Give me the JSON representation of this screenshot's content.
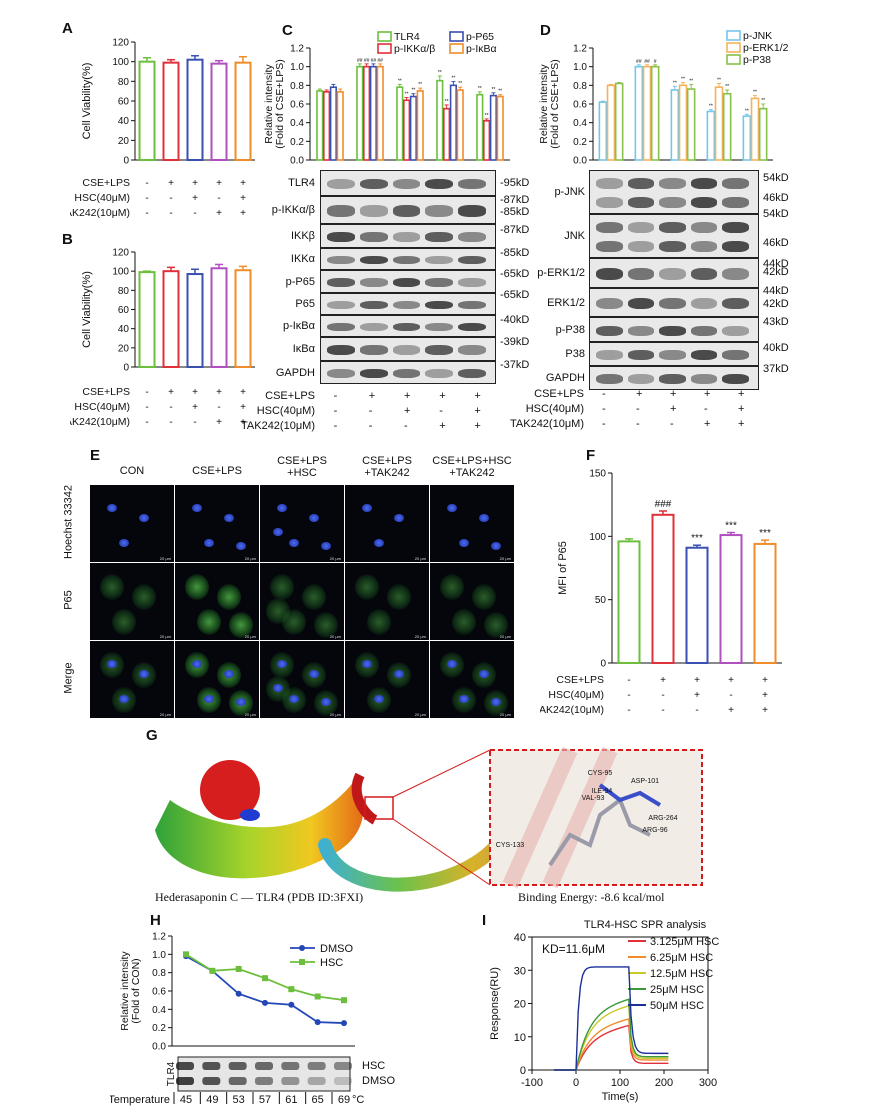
{
  "panels": {
    "A": {
      "label": "A",
      "ylabel": "Cell Viability(%)",
      "yticks": [
        "0",
        "20",
        "40",
        "60",
        "80",
        "100",
        "120"
      ],
      "conds": [
        {
          "name": "CSE+LPS",
          "signs": [
            "-",
            "+",
            "+",
            "+",
            "+"
          ]
        },
        {
          "name": "HSC(40μM)",
          "signs": [
            "-",
            "-",
            "+",
            "-",
            "+"
          ]
        },
        {
          "name": "TAK242(10μM)",
          "signs": [
            "-",
            "-",
            "-",
            "+",
            "+"
          ]
        }
      ]
    },
    "B": {
      "label": "B",
      "ylabel": "Cell Viability(%)",
      "yticks": [
        "0",
        "20",
        "40",
        "60",
        "80",
        "100",
        "120"
      ],
      "conds": [
        {
          "name": "CSE+LPS",
          "signs": [
            "-",
            "+",
            "+",
            "+",
            "+"
          ]
        },
        {
          "name": "HSC(40μM)",
          "signs": [
            "-",
            "-",
            "+",
            "-",
            "+"
          ]
        },
        {
          "name": "TAK242(10μM)",
          "signs": [
            "-",
            "-",
            "-",
            "+",
            "+"
          ]
        }
      ]
    },
    "C": {
      "label": "C",
      "ylabel": "Relative intensity\n(Fold of CSE+LPS)",
      "yticks": [
        "0.0",
        "0.2",
        "0.4",
        "0.6",
        "0.8",
        "1.0",
        "1.2"
      ],
      "legend": [
        "TLR4",
        "p-P65",
        "p-IKKα/β",
        "p-IκBα"
      ],
      "rows": [
        "TLR4",
        "p-IKKα/β",
        "IKKβ",
        "IKKα",
        "p-P65",
        "P65",
        "p-IκBα",
        "IκBα",
        "GAPDH"
      ],
      "kd": [
        "95kD",
        "87kD",
        "85kD",
        "87kD",
        "85kD",
        "65kD",
        "65kD",
        "40kD",
        "39kD",
        "37kD"
      ],
      "conds": [
        {
          "name": "CSE+LPS",
          "signs": [
            "-",
            "+",
            "+",
            "+",
            "+"
          ]
        },
        {
          "name": "HSC(40μM)",
          "signs": [
            "-",
            "-",
            "+",
            "-",
            "+"
          ]
        },
        {
          "name": "TAK242(10μM)",
          "signs": [
            "-",
            "-",
            "-",
            "+",
            "+"
          ]
        }
      ],
      "sig_hash": "##",
      "sig_star": "**"
    },
    "D": {
      "label": "D",
      "ylabel": "Relative intensity\n(Fold of CSE+LPS)",
      "yticks": [
        "0.0",
        "0.2",
        "0.4",
        "0.6",
        "0.8",
        "1.0",
        "1.2"
      ],
      "legend": [
        "p-JNK",
        "p-ERK1/2",
        "p-P38"
      ],
      "rows": [
        "p-JNK",
        "JNK",
        "p-ERK1/2",
        "ERK1/2",
        "p-P38",
        "P38",
        "GAPDH"
      ],
      "kd": [
        "54kD",
        "46kD",
        "54kD",
        "46kD",
        "44kD",
        "42kD",
        "44kD",
        "42kD",
        "43kD",
        "40kD",
        "37kD"
      ],
      "conds": [
        {
          "name": "CSE+LPS",
          "signs": [
            "-",
            "+",
            "+",
            "+",
            "+"
          ]
        },
        {
          "name": "HSC(40μM)",
          "signs": [
            "-",
            "-",
            "+",
            "-",
            "+"
          ]
        },
        {
          "name": "TAK242(10μM)",
          "signs": [
            "-",
            "-",
            "-",
            "+",
            "+"
          ]
        }
      ],
      "sig_hash": "##",
      "sig_hash1": "#",
      "sig_star": "**"
    },
    "E": {
      "label": "E",
      "cols": [
        "CON",
        "CSE+LPS",
        "CSE+LPS\n+HSC",
        "CSE+LPS\n+TAK242",
        "CSE+LPS+HSC\n+TAK242"
      ],
      "rows": [
        "Hoechst 33342",
        "P65",
        "Merge"
      ],
      "scale": "20 μm"
    },
    "F": {
      "label": "F",
      "ylabel": "MFI of P65",
      "yticks": [
        "0",
        "50",
        "100",
        "150"
      ],
      "sig_hash": "###",
      "sig_star": "***",
      "conds": [
        {
          "name": "CSE+LPS",
          "signs": [
            "-",
            "+",
            "+",
            "+",
            "+"
          ]
        },
        {
          "name": "HSC(40μM)",
          "signs": [
            "-",
            "-",
            "+",
            "-",
            "+"
          ]
        },
        {
          "name": "TAK242(10μM)",
          "signs": [
            "-",
            "-",
            "-",
            "+",
            "+"
          ]
        }
      ]
    },
    "G": {
      "label": "G",
      "caption": "Hederasaponin C — TLR4 (PDB ID:3FXI)",
      "energy": "Binding Energy: -8.6 kcal/mol",
      "residues": [
        "CYS-95",
        "ASP-101",
        "ILE-94",
        "VAL-93",
        "ARG-264",
        "ARG-96",
        "CYS-133"
      ]
    },
    "H": {
      "label": "H",
      "ylabel": "Relative intensity\n(Fold of CON)",
      "yticks": [
        "0.0",
        "0.2",
        "0.4",
        "0.6",
        "0.8",
        "1.0",
        "1.2"
      ],
      "legend": [
        "DMSO",
        "HSC"
      ],
      "blot_label": "TLR4",
      "blot_rows": [
        "HSC",
        "DMSO"
      ],
      "temp_label": "Temperature",
      "temp_unit": "°C"
    },
    "I": {
      "label": "I",
      "title": "TLR4-HSC SPR analysis",
      "kd_label": "KD=11.6μM",
      "xlabel": "Time(s)",
      "ylabel": "Response(RU)",
      "yticks": [
        "0",
        "10",
        "20",
        "30",
        "40"
      ],
      "xticks": [
        "-100",
        "0",
        "100",
        "200",
        "300"
      ],
      "legend": [
        "3.125μM HSC",
        "6.25μM HSC",
        "12.5μM HSC",
        "25μM HSC",
        "50μM HSC"
      ]
    }
  },
  "chart_data": [
    {
      "id": "A",
      "type": "bar",
      "categories": [
        "1",
        "2",
        "3",
        "4",
        "5"
      ],
      "values": [
        100,
        99,
        102,
        98,
        99
      ],
      "errors": [
        4,
        3,
        4,
        3,
        6
      ],
      "colors": [
        "#6cbf3c",
        "#e0303a",
        "#3a4fb0",
        "#b24fc0",
        "#f08c2a"
      ],
      "ylim": [
        0,
        120
      ],
      "ylabel": "Cell Viability(%)"
    },
    {
      "id": "B",
      "type": "bar",
      "categories": [
        "1",
        "2",
        "3",
        "4",
        "5"
      ],
      "values": [
        99,
        100,
        97,
        103,
        101
      ],
      "errors": [
        1,
        4,
        5,
        4,
        4
      ],
      "colors": [
        "#6cbf3c",
        "#e0303a",
        "#3a4fb0",
        "#b24fc0",
        "#f08c2a"
      ],
      "ylim": [
        0,
        120
      ],
      "ylabel": "Cell Viability(%)"
    },
    {
      "id": "C",
      "type": "bar",
      "groups": [
        "1",
        "2",
        "3",
        "4",
        "5"
      ],
      "ylim": [
        0,
        1.2
      ],
      "series": [
        {
          "name": "TLR4",
          "color": "#6cbf3c",
          "values": [
            0.74,
            1.0,
            0.78,
            0.85,
            0.7
          ],
          "errors": [
            0.02,
            0.03,
            0.03,
            0.05,
            0.03
          ]
        },
        {
          "name": "p-IKKα/β",
          "color": "#e0303a",
          "values": [
            0.73,
            1.0,
            0.64,
            0.55,
            0.42
          ],
          "errors": [
            0.02,
            0.03,
            0.03,
            0.04,
            0.02
          ]
        },
        {
          "name": "p-P65",
          "color": "#3a4fb0",
          "values": [
            0.78,
            1.0,
            0.68,
            0.8,
            0.69
          ],
          "errors": [
            0.03,
            0.03,
            0.03,
            0.04,
            0.03
          ]
        },
        {
          "name": "p-IκBα",
          "color": "#f08c2a",
          "values": [
            0.73,
            1.0,
            0.74,
            0.75,
            0.68
          ],
          "errors": [
            0.03,
            0.03,
            0.03,
            0.03,
            0.02
          ]
        }
      ]
    },
    {
      "id": "D",
      "type": "bar",
      "groups": [
        "1",
        "2",
        "3",
        "4",
        "5"
      ],
      "ylim": [
        0,
        1.2
      ],
      "series": [
        {
          "name": "p-JNK",
          "color": "#74c6ec",
          "values": [
            0.62,
            1.0,
            0.75,
            0.52,
            0.47
          ],
          "errors": [
            0.01,
            0.02,
            0.04,
            0.02,
            0.02
          ]
        },
        {
          "name": "p-ERK1/2",
          "color": "#f5b25a",
          "values": [
            0.8,
            1.0,
            0.8,
            0.78,
            0.66
          ],
          "errors": [
            0.01,
            0.02,
            0.03,
            0.04,
            0.03
          ]
        },
        {
          "name": "p-P38",
          "color": "#86c24a",
          "values": [
            0.82,
            1.0,
            0.76,
            0.71,
            0.55
          ],
          "errors": [
            0.01,
            0.02,
            0.05,
            0.04,
            0.05
          ]
        }
      ]
    },
    {
      "id": "F",
      "type": "bar",
      "categories": [
        "1",
        "2",
        "3",
        "4",
        "5"
      ],
      "values": [
        96,
        117,
        91,
        101,
        94
      ],
      "errors": [
        2,
        3,
        2,
        2,
        3
      ],
      "colors": [
        "#6cbf3c",
        "#e0303a",
        "#3a4fb0",
        "#b24fc0",
        "#f08c2a"
      ],
      "ylim": [
        0,
        150
      ],
      "ylabel": "MFI of P65"
    },
    {
      "id": "H",
      "type": "line",
      "x": [
        45,
        49,
        53,
        57,
        61,
        65,
        69
      ],
      "ylim": [
        0,
        1.2
      ],
      "series": [
        {
          "name": "DMSO",
          "color": "#2447b8",
          "values": [
            0.98,
            0.82,
            0.57,
            0.47,
            0.45,
            0.26,
            0.25
          ]
        },
        {
          "name": "HSC",
          "color": "#6cbf3c",
          "values": [
            1.0,
            0.82,
            0.84,
            0.74,
            0.62,
            0.54,
            0.5
          ]
        }
      ]
    },
    {
      "id": "I",
      "type": "line",
      "xlim": [
        -100,
        300
      ],
      "ylim": [
        0,
        40
      ],
      "xlabel": "Time(s)",
      "ylabel": "Response(RU)",
      "series": [
        {
          "name": "3.125μM HSC",
          "color": "#e2303a",
          "plateau": 10,
          "tail": 2
        },
        {
          "name": "6.25μM HSC",
          "color": "#f08c2a",
          "plateau": 12,
          "tail": 3
        },
        {
          "name": "12.5μM HSC",
          "color": "#c9c92a",
          "plateau": 16,
          "tail": 3.5
        },
        {
          "name": "25μM HSC",
          "color": "#3a9a3a",
          "plateau": 18,
          "tail": 4
        },
        {
          "name": "50μM HSC",
          "color": "#1c2f9a",
          "plateau": 31,
          "tail": 5
        }
      ]
    }
  ]
}
